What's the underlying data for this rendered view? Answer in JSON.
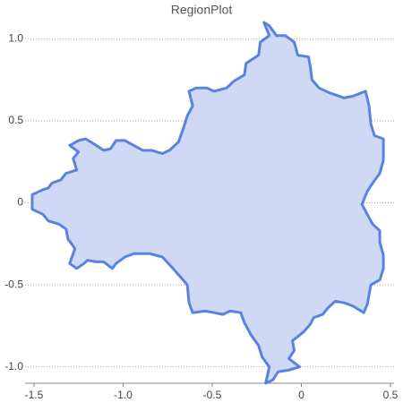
{
  "chart_data": {
    "type": "region",
    "title": "RegionPlot",
    "x": [
      -0.21,
      -0.18,
      -0.23,
      -0.24,
      -0.31,
      -0.32,
      -0.38,
      -0.42,
      -0.49,
      -0.53,
      -0.59,
      -0.63,
      -0.61,
      -0.64,
      -0.66,
      -0.69,
      -0.74,
      -0.78,
      -0.84,
      -0.89,
      -0.94,
      -0.99,
      -1.04,
      -1.07,
      -1.11,
      -1.15,
      -1.21,
      -1.25,
      -1.3,
      -1.25,
      -1.28,
      -1.26,
      -1.32,
      -1.35,
      -1.4,
      -1.42,
      -1.45,
      -1.51,
      -1.51,
      -1.45,
      -1.42,
      -1.36,
      -1.32,
      -1.31,
      -1.27,
      -1.3,
      -1.26,
      -1.22,
      -1.2,
      -1.15,
      -1.11,
      -1.06,
      -1.04,
      -0.99,
      -0.94,
      -0.85,
      -0.78,
      -0.72,
      -0.64,
      -0.63,
      -0.61,
      -0.54,
      -0.49,
      -0.44,
      -0.4,
      -0.34,
      -0.32,
      -0.28,
      -0.24,
      -0.22,
      -0.18,
      -0.2,
      -0.16,
      -0.13,
      -0.07,
      -0.01,
      -0.07,
      -0.04,
      -0.05,
      0.01,
      0.05,
      0.07,
      0.12,
      0.15,
      0.19,
      0.24,
      0.29,
      0.35,
      0.37,
      0.39,
      0.44,
      0.46,
      0.46,
      0.44,
      0.44,
      0.4,
      0.37,
      0.34,
      0.37,
      0.4,
      0.44,
      0.46,
      0.46,
      0.41,
      0.39,
      0.38,
      0.36,
      0.29,
      0.24,
      0.16,
      0.1,
      0.06,
      0.05,
      0.04,
      -0.02,
      -0.04,
      -0.09,
      -0.14,
      -0.18
    ],
    "values": [
      1.1,
      1.02,
      0.98,
      0.9,
      0.85,
      0.78,
      0.74,
      0.7,
      0.68,
      0.7,
      0.7,
      0.68,
      0.59,
      0.53,
      0.46,
      0.37,
      0.32,
      0.3,
      0.32,
      0.32,
      0.35,
      0.38,
      0.38,
      0.33,
      0.32,
      0.35,
      0.39,
      0.38,
      0.35,
      0.31,
      0.27,
      0.2,
      0.18,
      0.14,
      0.12,
      0.09,
      0.08,
      0.05,
      -0.04,
      -0.07,
      -0.11,
      -0.13,
      -0.16,
      -0.22,
      -0.28,
      -0.37,
      -0.4,
      -0.37,
      -0.35,
      -0.36,
      -0.36,
      -0.4,
      -0.37,
      -0.33,
      -0.31,
      -0.31,
      -0.33,
      -0.4,
      -0.5,
      -0.61,
      -0.67,
      -0.66,
      -0.67,
      -0.68,
      -0.66,
      -0.67,
      -0.73,
      -0.81,
      -0.87,
      -0.94,
      -1.0,
      -1.1,
      -1.08,
      -1.03,
      -1.02,
      -1.0,
      -0.95,
      -0.9,
      -0.84,
      -0.79,
      -0.74,
      -0.7,
      -0.68,
      -0.64,
      -0.6,
      -0.61,
      -0.63,
      -0.67,
      -0.62,
      -0.5,
      -0.47,
      -0.4,
      -0.32,
      -0.24,
      -0.17,
      -0.13,
      -0.07,
      -0.01,
      0.07,
      0.12,
      0.18,
      0.26,
      0.39,
      0.41,
      0.48,
      0.59,
      0.68,
      0.65,
      0.64,
      0.67,
      0.7,
      0.75,
      0.83,
      0.89,
      0.9,
      0.98,
      1.02,
      1.02,
      1.08
    ],
    "color": "#5a82e0",
    "fill": "#cfd9f5",
    "xlim": [
      -1.55,
      0.52
    ],
    "ylim": [
      -1.1,
      1.1
    ],
    "xticks": [
      -1.5,
      {
        "value": -1.0,
        "label": "-1.0"
      },
      -0.5,
      0,
      0.5
    ],
    "yticks": [
      {
        "value": -1.0,
        "label": "-1.0"
      },
      -0.5,
      0,
      0.5,
      {
        "value": 1.0,
        "label": "1.0"
      }
    ],
    "grid": true
  }
}
